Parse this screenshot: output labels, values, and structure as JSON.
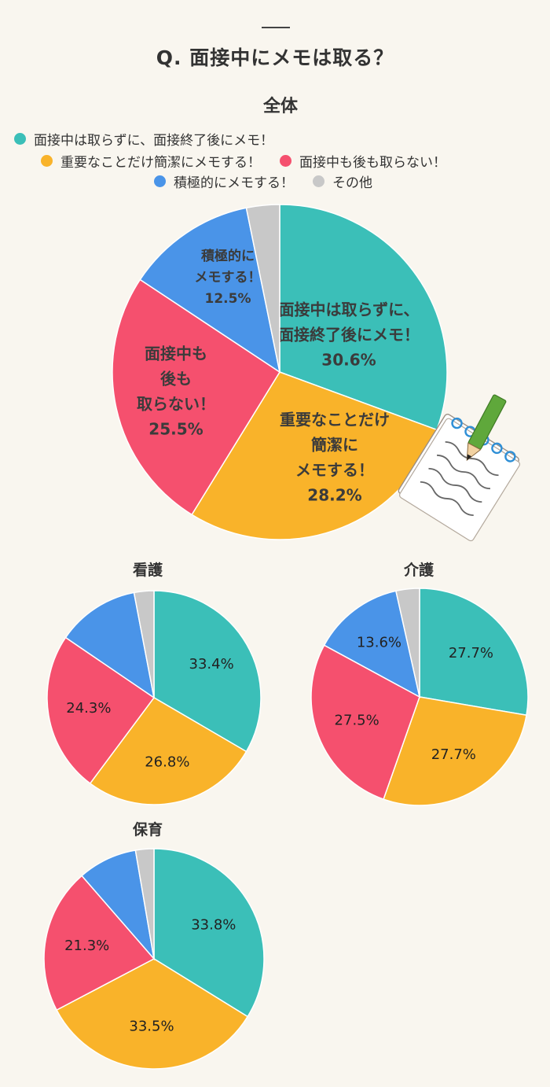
{
  "header": {
    "title": "Q. 面接中にメモは取る？",
    "subtitle": "全体"
  },
  "legend": [
    {
      "label": "面接中は取らずに、面接終了後にメモ！",
      "color": "#3bbfb8"
    },
    {
      "label": "重要なことだけ簡潔にメモする！",
      "color": "#f9b32a"
    },
    {
      "label": "面接中も後も取らない！",
      "color": "#f5506e"
    },
    {
      "label": "積極的にメモする！",
      "color": "#4a94e8"
    },
    {
      "label": "その他",
      "color": "#c8c8c8"
    }
  ],
  "chart_data": [
    {
      "type": "pie",
      "title": "全体",
      "categories": [
        "面接中は取らずに、面接終了後にメモ！",
        "重要なことだけ簡潔にメモする！",
        "面接中も後も取らない！",
        "積極的にメモする！",
        "その他"
      ],
      "values": [
        30.6,
        28.2,
        25.5,
        12.5,
        3.2
      ],
      "value_labels": [
        "30.6%",
        "28.2%",
        "25.5%",
        "12.5%",
        ""
      ],
      "slice_texts": [
        [
          "面接中は取らずに、",
          "面接終了後にメモ！",
          "30.6%"
        ],
        [
          "重要なことだけ",
          "簡潔に",
          "メモする！",
          "28.2%"
        ],
        [
          "面接中も",
          "後も",
          "取らない！",
          "25.5%"
        ],
        [
          "積極的に",
          "メモする！",
          "12.5%"
        ],
        []
      ],
      "colors": [
        "#3bbfb8",
        "#f9b32a",
        "#f5506e",
        "#4a94e8",
        "#c8c8c8"
      ]
    },
    {
      "type": "pie",
      "title": "看護",
      "categories": [
        "面接中は取らずに、面接終了後にメモ！",
        "重要なことだけ簡潔にメモする！",
        "面接中も後も取らない！",
        "積極的にメモする！",
        "その他"
      ],
      "values": [
        33.4,
        26.8,
        24.3,
        12.5,
        3.0
      ],
      "value_labels": [
        "33.4%",
        "26.8%",
        "24.3%",
        "",
        ""
      ],
      "colors": [
        "#3bbfb8",
        "#f9b32a",
        "#f5506e",
        "#4a94e8",
        "#c8c8c8"
      ]
    },
    {
      "type": "pie",
      "title": "介護",
      "categories": [
        "面接中は取らずに、面接終了後にメモ！",
        "重要なことだけ簡潔にメモする！",
        "面接中も後も取らない！",
        "積極的にメモする！",
        "その他"
      ],
      "values": [
        27.7,
        27.7,
        27.5,
        13.6,
        3.5
      ],
      "value_labels": [
        "27.7%",
        "27.7%",
        "27.5%",
        "13.6%",
        ""
      ],
      "colors": [
        "#3bbfb8",
        "#f9b32a",
        "#f5506e",
        "#4a94e8",
        "#c8c8c8"
      ]
    },
    {
      "type": "pie",
      "title": "保育",
      "categories": [
        "面接中は取らずに、面接終了後にメモ！",
        "重要なことだけ簡潔にメモする！",
        "面接中も後も取らない！",
        "積極的にメモする！",
        "その他"
      ],
      "values": [
        33.8,
        33.5,
        21.3,
        8.7,
        2.7
      ],
      "value_labels": [
        "33.8%",
        "33.5%",
        "21.3%",
        "",
        ""
      ],
      "colors": [
        "#3bbfb8",
        "#f9b32a",
        "#f5506e",
        "#4a94e8",
        "#c8c8c8"
      ]
    }
  ],
  "illustration": {
    "icon": "memo-pad-pencil-icon"
  }
}
